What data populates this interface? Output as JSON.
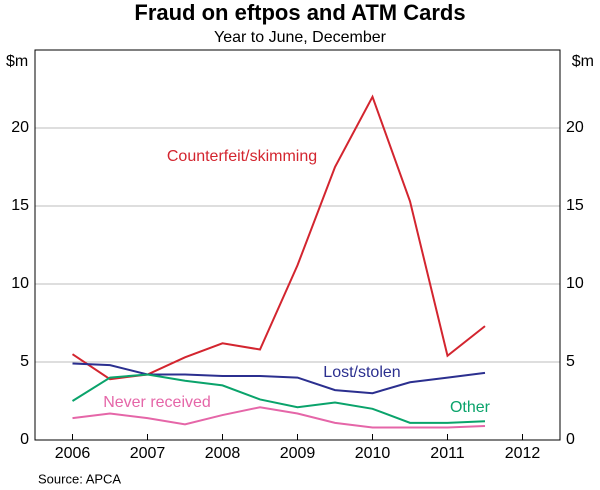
{
  "chart_data": {
    "type": "line",
    "title": "Fraud on eftpos and ATM Cards",
    "subtitle": "Year to June, December",
    "y_label": "$m",
    "y2_label": "$m",
    "source": "Source: APCA",
    "x": [
      2006,
      2006.5,
      2007,
      2007.5,
      2008,
      2008.5,
      2009,
      2009.5,
      2010,
      2010.5,
      2011,
      2011.5
    ],
    "xlim": [
      2005.5,
      2012.5
    ],
    "xticks": [
      2006,
      2007,
      2008,
      2009,
      2010,
      2011,
      2012
    ],
    "ylim": [
      0,
      25
    ],
    "yticks": [
      0,
      5,
      10,
      15,
      20
    ],
    "y2lim": [
      0,
      25
    ],
    "y2ticks": [
      0,
      5,
      10,
      15,
      20
    ],
    "grid": true,
    "series": [
      {
        "name": "Counterfeit/skimming",
        "color": "#d3252f",
        "values": [
          5.5,
          3.9,
          4.2,
          5.3,
          6.2,
          5.8,
          11.2,
          17.5,
          22.0,
          15.3,
          5.4,
          7.3
        ]
      },
      {
        "name": "Lost/stolen",
        "color": "#2b2f8f",
        "values": [
          4.9,
          4.8,
          4.2,
          4.2,
          4.1,
          4.1,
          4.0,
          3.2,
          3.0,
          3.7,
          4.0,
          4.3
        ]
      },
      {
        "name": "Other",
        "color": "#0aa36b",
        "values": [
          2.5,
          4.0,
          4.2,
          3.8,
          3.5,
          2.6,
          2.1,
          2.4,
          2.0,
          1.1,
          1.1,
          1.2
        ]
      },
      {
        "name": "Never received",
        "color": "#e566a8",
        "values": [
          1.4,
          1.7,
          1.4,
          1.0,
          1.6,
          2.1,
          1.7,
          1.1,
          0.8,
          0.8,
          0.8,
          0.9
        ]
      }
    ]
  }
}
